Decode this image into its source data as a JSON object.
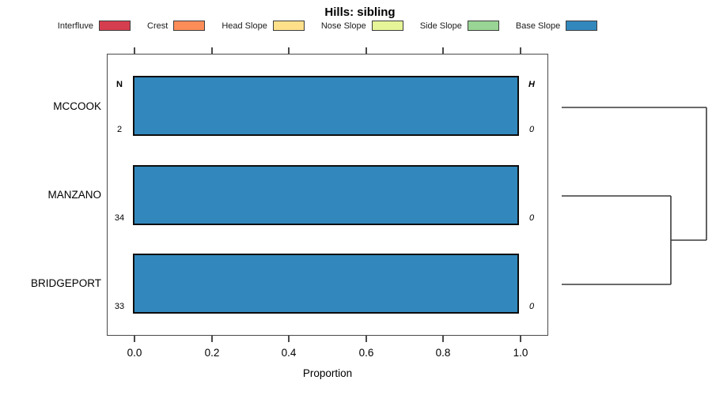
{
  "title": "Hills: sibling",
  "legend": {
    "items": [
      {
        "label": "Interfluve",
        "color": "#D53E4F"
      },
      {
        "label": "Crest",
        "color": "#FC8D59"
      },
      {
        "label": "Head Slope",
        "color": "#FEE08B"
      },
      {
        "label": "Nose Slope",
        "color": "#E6F598"
      },
      {
        "label": "Side Slope",
        "color": "#99D594"
      },
      {
        "label": "Base Slope",
        "color": "#3288BD"
      }
    ]
  },
  "chart_data": {
    "type": "bar",
    "orientation": "horizontal-stacked",
    "title": "Hills: sibling",
    "xlabel": "Proportion",
    "xlim": [
      0,
      1
    ],
    "x_ticks": [
      "0.0",
      "0.2",
      "0.4",
      "0.6",
      "0.8",
      "1.0"
    ],
    "grid": false,
    "categories": [
      "MCCOOK",
      "MANZANO",
      "BRIDGEPORT"
    ],
    "series": [
      {
        "name": "Interfluve",
        "color": "#D53E4F",
        "values": [
          0,
          0,
          0
        ]
      },
      {
        "name": "Crest",
        "color": "#FC8D59",
        "values": [
          0,
          0,
          0
        ]
      },
      {
        "name": "Head Slope",
        "color": "#FEE08B",
        "values": [
          0,
          0,
          0
        ]
      },
      {
        "name": "Nose Slope",
        "color": "#E6F598",
        "values": [
          0,
          0,
          0
        ]
      },
      {
        "name": "Side Slope",
        "color": "#99D594",
        "values": [
          0,
          0,
          0
        ]
      },
      {
        "name": "Base Slope",
        "color": "#3288BD",
        "values": [
          1,
          1,
          1
        ]
      }
    ],
    "annotations": {
      "n_header": "N",
      "h_header": "H",
      "n_values": [
        "2",
        "34",
        "33"
      ],
      "h_values": [
        "0",
        "0",
        "0"
      ]
    },
    "dendrogram": {
      "position": "right",
      "structure": "((MANZANO,BRIDGEPORT),MCCOOK)",
      "merges": [
        {
          "members": [
            "MANZANO",
            "BRIDGEPORT"
          ]
        },
        {
          "members": [
            "MANZANO+BRIDGEPORT",
            "MCCOOK"
          ]
        }
      ],
      "segments": [
        [
          710,
          136,
          893,
          136
        ],
        [
          893,
          136,
          893,
          304
        ],
        [
          848,
          304,
          893,
          304
        ],
        [
          848,
          248,
          848,
          360
        ],
        [
          710,
          248,
          848,
          248
        ],
        [
          710,
          360,
          848,
          360
        ]
      ]
    }
  }
}
